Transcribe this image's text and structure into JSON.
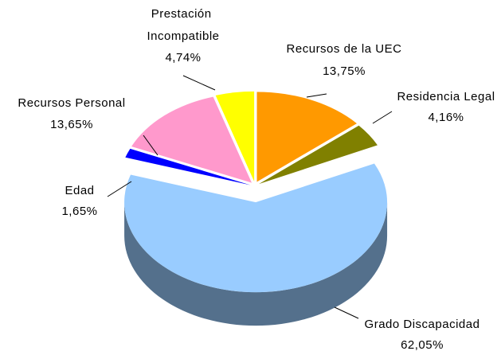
{
  "chart_data": {
    "type": "pie",
    "categories": [
      "Recursos de la UEC",
      "Residencia Legal",
      "Grado Discapacidad",
      "Edad",
      "Recursos Personal",
      "Prestación Incompatible"
    ],
    "values": [
      13.75,
      4.16,
      62.05,
      1.65,
      13.65,
      4.74
    ],
    "value_labels": [
      "13,75%",
      "4,16%",
      "62,05%",
      "1,65%",
      "13,65%",
      "4,74%"
    ],
    "colors": [
      "#ff9900",
      "#808000",
      "#99ccff",
      "#0000ff",
      "#ff99cc",
      "#ffff00"
    ]
  }
}
